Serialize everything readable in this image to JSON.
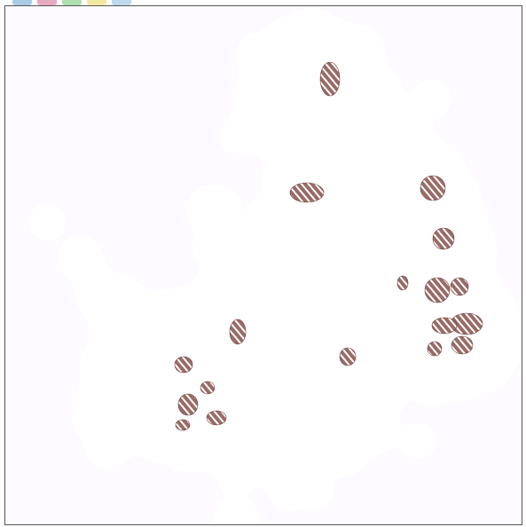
{
  "swatches": [
    {
      "name": "blue-tab",
      "color": "#a9cce6"
    },
    {
      "name": "pink-tab",
      "color": "#e6a9c2"
    },
    {
      "name": "green-tab",
      "color": "#aee0b0"
    },
    {
      "name": "yellow-tab",
      "color": "#f2e9a0"
    },
    {
      "name": "lightblue-tab",
      "color": "#bcd8ec"
    }
  ],
  "colors": {
    "background": "#fdfbff",
    "frame_border": "#555555",
    "hatch_fill": "#9a6b66",
    "hatch_stripe": "#ffffff",
    "ramp": [
      "#cc00ff",
      "#3366ff",
      "#00ffff",
      "#33ff33",
      "#ffff00",
      "#ff9900",
      "#ff5500"
    ]
  }
}
